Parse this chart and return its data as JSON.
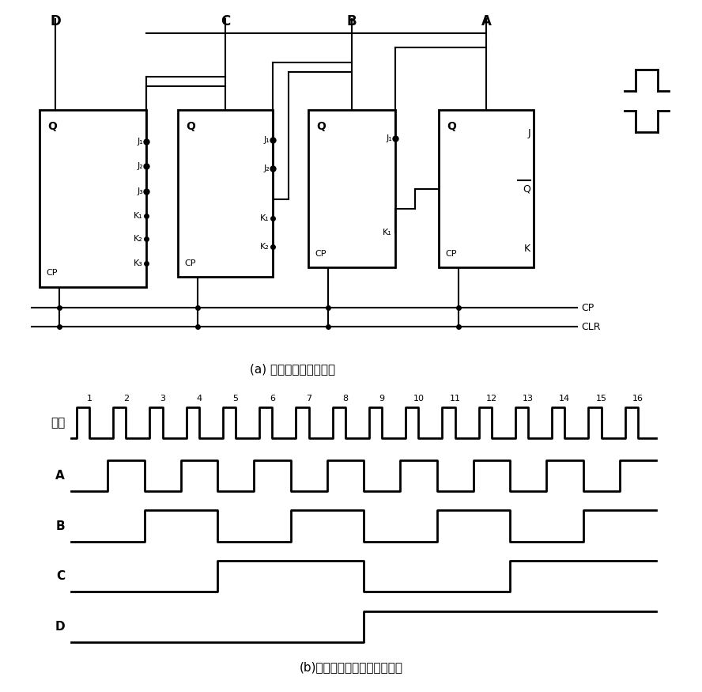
{
  "bg_color": "#ffffff",
  "title_a": "(a) 同步计数器电路结构",
  "title_b": "(b)同步计数器信号波形时序图",
  "waveform_labels": [
    "输入",
    "A",
    "B",
    "C",
    "D"
  ],
  "clock_count": 16,
  "cp_label": "CP",
  "clr_label": "CLR",
  "font_color": "#000000",
  "ff_configs": [
    [
      50,
      120,
      135,
      185,
      "D"
    ],
    [
      225,
      130,
      120,
      175,
      "C"
    ],
    [
      390,
      140,
      110,
      165,
      "B"
    ],
    [
      555,
      140,
      120,
      165,
      "A"
    ]
  ]
}
